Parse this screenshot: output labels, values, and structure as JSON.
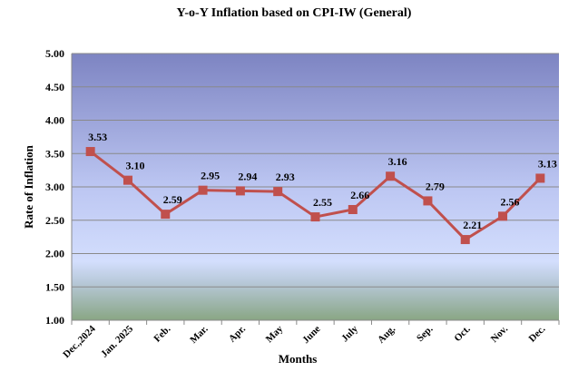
{
  "chart_data": {
    "type": "line",
    "title": "Y-o-Y Inflation based on CPI-IW (General)",
    "xlabel": "Months",
    "ylabel": "Rate of Inflation",
    "ylim": [
      1.0,
      5.0
    ],
    "yticks": [
      "1.00",
      "1.50",
      "2.00",
      "2.50",
      "3.00",
      "3.50",
      "4.00",
      "4.50",
      "5.00"
    ],
    "grid": true,
    "categories": [
      "Dec.,2024",
      "Jan. 2025",
      "Feb.",
      "Mar.",
      "Apr.",
      "May",
      "June",
      "July",
      "Aug.",
      "Sep.",
      "Oct.",
      "Nov.",
      "Dec."
    ],
    "series": [
      {
        "name": "Y-o-Y Inflation",
        "color": "#c0504d",
        "values": [
          3.53,
          3.1,
          2.59,
          2.95,
          2.94,
          2.93,
          2.55,
          2.66,
          3.16,
          2.79,
          2.21,
          2.56,
          3.13
        ],
        "labels": [
          "3.53",
          "3.10",
          "2.59",
          "2.95",
          "2.94",
          "2.93",
          "2.55",
          "2.66",
          "3.16",
          "2.79",
          "2.21",
          "2.56",
          "3.13"
        ]
      }
    ]
  }
}
